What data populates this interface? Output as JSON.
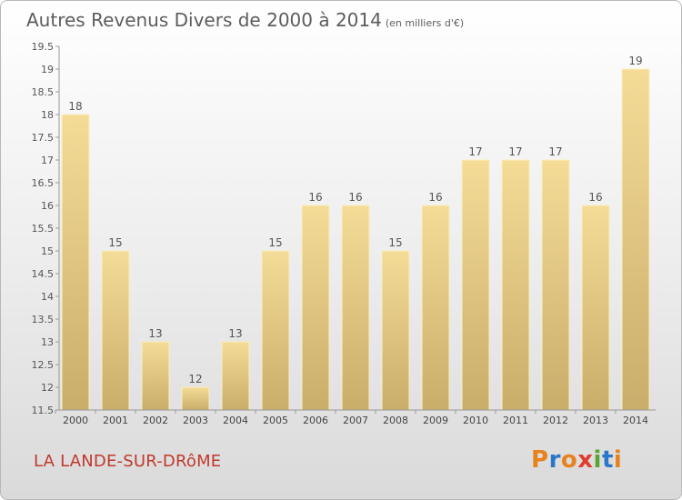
{
  "title": "Autres Revenus Divers de 2000 à 2014",
  "unit": "(en milliers d'€)",
  "commune": "LA LANDE-SUR-DRôME",
  "logo": {
    "letters": [
      "P",
      "r",
      "o",
      "x",
      "i",
      "t",
      "i"
    ],
    "colors": [
      "#e8821e",
      "#2a77c9",
      "#e8821e",
      "#e23b2d",
      "#5aa531",
      "#2a77c9",
      "#e8821e"
    ]
  },
  "chart_data": {
    "type": "bar",
    "categories": [
      "2000",
      "2001",
      "2002",
      "2003",
      "2004",
      "2005",
      "2006",
      "2007",
      "2008",
      "2009",
      "2010",
      "2011",
      "2012",
      "2013",
      "2014"
    ],
    "values": [
      18,
      15,
      13,
      12,
      13,
      15,
      16,
      16,
      15,
      16,
      17,
      17,
      17,
      16,
      19
    ],
    "ylim": [
      11.5,
      19.5
    ],
    "yticks": [
      "11.5",
      "12",
      "12.5",
      "13",
      "13.5",
      "14",
      "14.5",
      "15",
      "15.5",
      "16",
      "16.5",
      "17",
      "17.5",
      "18",
      "18.5",
      "19",
      "19.5"
    ],
    "grid": false
  }
}
